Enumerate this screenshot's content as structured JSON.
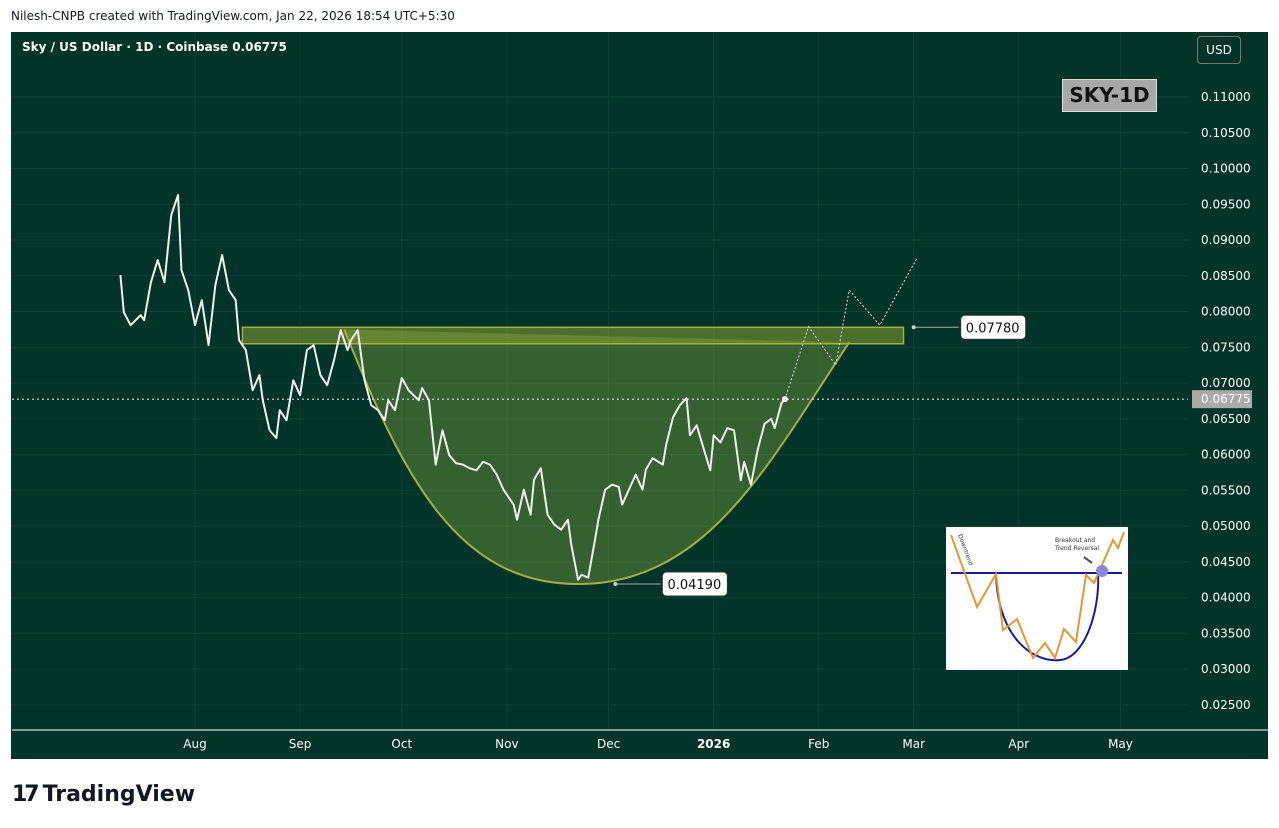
{
  "header": {
    "credit": "Nilesh-CNPB created with TradingView.com, Jan 22, 2026 18:54 UTC+5:30",
    "title": "Sky / US Dollar · 1D · Coinbase  0.06775",
    "currency_button": "USD",
    "badge": "SKY-1D"
  },
  "footer": {
    "logo_text": "TradingView"
  },
  "chart_data": {
    "type": "line",
    "title": "Sky / US Dollar · 1D · Coinbase",
    "last_price": 0.06775,
    "ylim": [
      0.02,
      0.115
    ],
    "y_ticks": [
      "0.11000",
      "0.10500",
      "0.10000",
      "0.09500",
      "0.09000",
      "0.08500",
      "0.08000",
      "0.07500",
      "0.07000",
      "0.06500",
      "0.06000",
      "0.05500",
      "0.05000",
      "0.04500",
      "0.04000",
      "0.03500",
      "0.03000",
      "0.02500"
    ],
    "x_ticks": [
      {
        "label": "Aug",
        "date": "2025-08-01"
      },
      {
        "label": "Sep",
        "date": "2025-09-01"
      },
      {
        "label": "Oct",
        "date": "2025-10-01"
      },
      {
        "label": "Nov",
        "date": "2025-11-01"
      },
      {
        "label": "Dec",
        "date": "2025-12-01"
      },
      {
        "label": "2026",
        "date": "2026-01-01"
      },
      {
        "label": "Feb",
        "date": "2026-02-01"
      },
      {
        "label": "Mar",
        "date": "2026-03-01"
      },
      {
        "label": "Apr",
        "date": "2026-04-01"
      },
      {
        "label": "May",
        "date": "2026-05-01"
      }
    ],
    "colors": {
      "price": "#f0f0f0",
      "zone": "#8a9a3a",
      "cup": "#9aa83a",
      "background": "#02342a"
    },
    "series": [
      {
        "values": [
          [
            "2025-07-10",
            0.0851
          ],
          [
            "2025-07-11",
            0.0799
          ],
          [
            "2025-07-13",
            0.0781
          ],
          [
            "2025-07-16",
            0.0795
          ],
          [
            "2025-07-17",
            0.0788
          ],
          [
            "2025-07-19",
            0.0841
          ],
          [
            "2025-07-21",
            0.0872
          ],
          [
            "2025-07-23",
            0.0841
          ],
          [
            "2025-07-25",
            0.0935
          ],
          [
            "2025-07-27",
            0.0963
          ],
          [
            "2025-07-28",
            0.0858
          ],
          [
            "2025-07-30",
            0.083
          ],
          [
            "2025-08-01",
            0.0781
          ],
          [
            "2025-08-03",
            0.0816
          ],
          [
            "2025-08-05",
            0.0753
          ],
          [
            "2025-08-07",
            0.0837
          ],
          [
            "2025-08-09",
            0.0879
          ],
          [
            "2025-08-11",
            0.083
          ],
          [
            "2025-08-13",
            0.0816
          ],
          [
            "2025-08-14",
            0.076
          ],
          [
            "2025-08-16",
            0.0746
          ],
          [
            "2025-08-18",
            0.069
          ],
          [
            "2025-08-20",
            0.0711
          ],
          [
            "2025-08-21",
            0.0676
          ],
          [
            "2025-08-23",
            0.0634
          ],
          [
            "2025-08-25",
            0.0623
          ],
          [
            "2025-08-26",
            0.0662
          ],
          [
            "2025-08-28",
            0.0648
          ],
          [
            "2025-08-30",
            0.0704
          ],
          [
            "2025-09-01",
            0.0683
          ],
          [
            "2025-09-03",
            0.0746
          ],
          [
            "2025-09-05",
            0.0753
          ],
          [
            "2025-09-07",
            0.0711
          ],
          [
            "2025-09-09",
            0.0697
          ],
          [
            "2025-09-11",
            0.0732
          ],
          [
            "2025-09-13",
            0.0774
          ],
          [
            "2025-09-15",
            0.0746
          ],
          [
            "2025-09-16",
            0.076
          ],
          [
            "2025-09-18",
            0.0774
          ],
          [
            "2025-09-20",
            0.0704
          ],
          [
            "2025-09-22",
            0.0669
          ],
          [
            "2025-09-24",
            0.0662
          ],
          [
            "2025-09-26",
            0.0648
          ],
          [
            "2025-09-27",
            0.0676
          ],
          [
            "2025-09-29",
            0.0662
          ],
          [
            "2025-10-01",
            0.0707
          ],
          [
            "2025-10-03",
            0.069
          ],
          [
            "2025-10-06",
            0.0676
          ],
          [
            "2025-10-07",
            0.0693
          ],
          [
            "2025-10-09",
            0.0676
          ],
          [
            "2025-10-11",
            0.0586
          ],
          [
            "2025-10-13",
            0.0634
          ],
          [
            "2025-10-15",
            0.0599
          ],
          [
            "2025-10-17",
            0.0588
          ],
          [
            "2025-10-19",
            0.0586
          ],
          [
            "2025-10-21",
            0.0581
          ],
          [
            "2025-10-23",
            0.0578
          ],
          [
            "2025-10-25",
            0.059
          ],
          [
            "2025-10-27",
            0.0586
          ],
          [
            "2025-10-29",
            0.0572
          ],
          [
            "2025-10-31",
            0.0551
          ],
          [
            "2025-11-03",
            0.053
          ],
          [
            "2025-11-04",
            0.0509
          ],
          [
            "2025-11-06",
            0.0551
          ],
          [
            "2025-11-08",
            0.0516
          ],
          [
            "2025-11-09",
            0.0565
          ],
          [
            "2025-11-11",
            0.0581
          ],
          [
            "2025-11-13",
            0.0516
          ],
          [
            "2025-11-15",
            0.0502
          ],
          [
            "2025-11-17",
            0.0495
          ],
          [
            "2025-11-19",
            0.0509
          ],
          [
            "2025-11-20",
            0.0474
          ],
          [
            "2025-11-22",
            0.0425
          ],
          [
            "2025-11-23",
            0.0432
          ],
          [
            "2025-11-25",
            0.0428
          ],
          [
            "2025-11-27",
            0.0481
          ],
          [
            "2025-11-28",
            0.0509
          ],
          [
            "2025-11-30",
            0.0551
          ],
          [
            "2025-12-02",
            0.0558
          ],
          [
            "2025-12-04",
            0.0555
          ],
          [
            "2025-12-05",
            0.053
          ],
          [
            "2025-12-07",
            0.0551
          ],
          [
            "2025-12-09",
            0.0572
          ],
          [
            "2025-12-11",
            0.0551
          ],
          [
            "2025-12-12",
            0.0579
          ],
          [
            "2025-12-14",
            0.0595
          ],
          [
            "2025-12-17",
            0.0586
          ],
          [
            "2025-12-18",
            0.0614
          ],
          [
            "2025-12-20",
            0.0652
          ],
          [
            "2025-12-22",
            0.0669
          ],
          [
            "2025-12-24",
            0.0679
          ],
          [
            "2025-12-25",
            0.0627
          ],
          [
            "2025-12-27",
            0.0641
          ],
          [
            "2025-12-29",
            0.0609
          ],
          [
            "2025-12-31",
            0.0578
          ],
          [
            "2026-01-01",
            0.0627
          ],
          [
            "2026-01-03",
            0.0617
          ],
          [
            "2026-01-05",
            0.0637
          ],
          [
            "2026-01-07",
            0.0634
          ],
          [
            "2026-01-09",
            0.0564
          ],
          [
            "2026-01-10",
            0.059
          ],
          [
            "2026-01-12",
            0.0558
          ],
          [
            "2026-01-14",
            0.0607
          ],
          [
            "2026-01-16",
            0.0643
          ],
          [
            "2026-01-18",
            0.065
          ],
          [
            "2026-01-19",
            0.0637
          ],
          [
            "2026-01-21",
            0.0672
          ],
          [
            "2026-01-22",
            0.06775
          ]
        ]
      }
    ],
    "projection": [
      [
        "2026-01-22",
        0.06775
      ],
      [
        "2026-01-29",
        0.0779
      ],
      [
        "2026-02-06",
        0.0725
      ],
      [
        "2026-02-10",
        0.083
      ],
      [
        "2026-02-19",
        0.0781
      ],
      [
        "2026-03-02",
        0.0875
      ]
    ],
    "resistance_zone": {
      "from": "2025-08-15",
      "to": "2026-02-26",
      "low": 0.0755,
      "high": 0.0778
    },
    "cup": {
      "left": [
        "2025-09-14",
        0.0775
      ],
      "bottom": [
        "2025-11-22",
        0.0419
      ],
      "right": [
        "2026-02-10",
        0.0757
      ]
    },
    "annotations": [
      {
        "label": "0.07780",
        "value": 0.0778,
        "date": "2026-03-01"
      },
      {
        "label": "0.04190",
        "value": 0.0419,
        "date": "2025-12-03"
      }
    ],
    "inset": {
      "texts": [
        "Downtrend",
        "Breakout and",
        "Trend Reversal"
      ]
    }
  }
}
